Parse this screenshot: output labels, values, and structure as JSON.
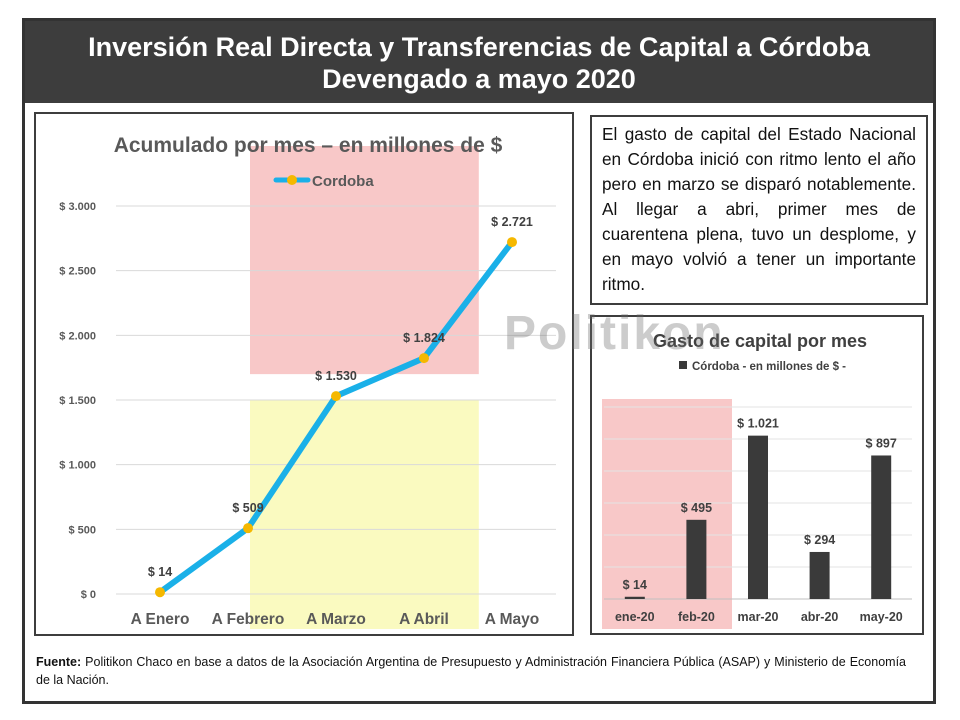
{
  "header": {
    "title_line1": "Inversión Real Directa y Transferencias de Capital a Córdoba",
    "title_line2": "Devengado a mayo 2020"
  },
  "description": "El gasto de capital del Estado Nacional en Córdoba inició con ritmo lento el año pero en marzo se disparó notablemente. Al llegar a abri, primer mes de cuarentena plena, tuvo un desplome, y en mayo volvió a tener un importante ritmo.",
  "watermark": "Politikon",
  "source": {
    "label": "Fuente:",
    "text": "Politikon Chaco en base a datos de la Asociación Argentina de Presupuesto y Administración Financiera Pública (ASAP) y Ministerio de Economía de la Nación."
  },
  "colors": {
    "header_bg": "#3d3d3d",
    "line": "#1ab0e8",
    "marker": "#f5b800",
    "bar": "#3a3a3a",
    "highlight_red": "#f8c8c8",
    "highlight_yellow": "#fafac0"
  },
  "chart_data": [
    {
      "type": "line",
      "title": "Acumulado por mes – en millones de $",
      "legend_position": "top",
      "categories": [
        "A Enero",
        "A Febrero",
        "A Marzo",
        "A Abril",
        "A Mayo"
      ],
      "series": [
        {
          "name": "Cordoba",
          "values": [
            14,
            509,
            1530,
            1824,
            2721
          ]
        }
      ],
      "data_labels": [
        "$ 14",
        "$ 509",
        "$ 1.530",
        "$ 1.824",
        "$ 2.721"
      ],
      "y_ticks": [
        0,
        500,
        1000,
        1500,
        2000,
        2500,
        3000
      ],
      "y_tick_labels": [
        "$ 0",
        "$ 500",
        "$ 1.000",
        "$ 1.500",
        "$ 2.000",
        "$ 2.500",
        "$ 3.000"
      ],
      "ylim": [
        0,
        3000
      ],
      "grid": true
    },
    {
      "type": "bar",
      "title": "Gasto de capital por mes",
      "legend_position": "top",
      "categories": [
        "ene-20",
        "feb-20",
        "mar-20",
        "abr-20",
        "may-20"
      ],
      "series": [
        {
          "name": "Córdoba - en millones de $ -",
          "values": [
            14,
            495,
            1021,
            294,
            897
          ]
        }
      ],
      "data_labels": [
        "$ 14",
        "$ 495",
        "$ 1.021",
        "$ 294",
        "$ 897"
      ],
      "ylim": [
        0,
        1300
      ],
      "grid": true
    }
  ]
}
